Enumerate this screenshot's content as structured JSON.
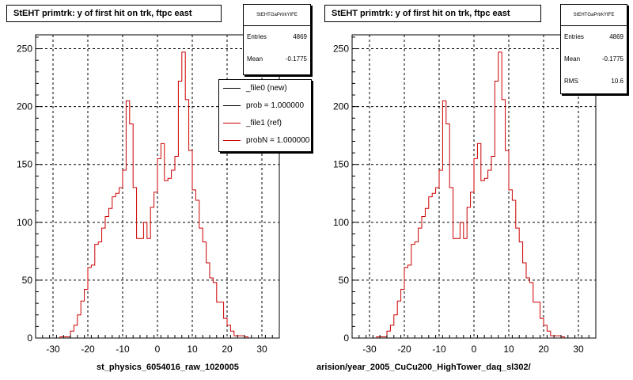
{
  "colors": {
    "hist": "#cc0000",
    "new": "#000000",
    "axis": "#000000",
    "grid": "#000000"
  },
  "panels": [
    {
      "title": "StEHT primtrk: y of first hit on trk, ftpc east",
      "stats": {
        "name": "StEHTGaPrtrkYtFE",
        "rows": [
          {
            "key": "Entries",
            "value": "4869"
          },
          {
            "key": "Mean",
            "value": "-0.1775"
          }
        ]
      },
      "legend": [
        {
          "label": "_file0 (new)",
          "color": "#000000"
        },
        {
          "label": "prob = 1.000000",
          "color": "#000000"
        },
        {
          "label": "_file1 (ref)",
          "color": "#cc0000"
        },
        {
          "label": "probN = 1.000000",
          "color": "#cc0000"
        }
      ],
      "xlabel": "st_physics_6054016_raw_1020005"
    },
    {
      "title": "StEHT primtrk: y of first hit on trk, ftpc east",
      "stats": {
        "name": "StEHTGaPrtrkYtFE",
        "rows": [
          {
            "key": "Entries",
            "value": "4869"
          },
          {
            "key": "Mean",
            "value": "-0.1775"
          },
          {
            "key": "RMS",
            "value": "10.6"
          }
        ]
      },
      "legend": [],
      "xlabel": "arision/year_2005_CuCu200_HighTower_daq_sl302/"
    }
  ],
  "chart_data": [
    {
      "type": "bar",
      "title": "StEHT primtrk: y of first hit on trk, ftpc east",
      "xlabel": "st_physics_6054016_raw_1020005",
      "ylabel": "",
      "xlim": [
        -35,
        35
      ],
      "ylim": [
        0,
        262
      ],
      "xticks": [
        -30,
        -20,
        -10,
        0,
        10,
        20,
        30
      ],
      "yticks": [
        0,
        50,
        100,
        150,
        200,
        250
      ],
      "grid": true,
      "bin_edges": [
        -28,
        -27,
        -26,
        -25,
        -24,
        -23,
        -22,
        -21,
        -20,
        -19,
        -18,
        -17,
        -16,
        -15,
        -14,
        -13,
        -12,
        -11,
        -10,
        -9,
        -8,
        -7,
        -6,
        -5,
        -4,
        -3,
        -2,
        -1,
        0,
        1,
        2,
        3,
        4,
        5,
        6,
        7,
        8,
        9,
        10,
        11,
        12,
        13,
        14,
        15,
        16,
        17,
        18,
        19,
        20,
        21,
        22,
        23,
        24,
        25,
        26
      ],
      "series": [
        {
          "name": "_file0 (new)",
          "values": [
            1,
            1,
            1,
            6,
            11,
            20,
            32,
            42,
            61,
            63,
            81,
            83,
            95,
            105,
            112,
            122,
            125,
            130,
            145,
            205,
            185,
            130,
            86,
            86,
            100,
            86,
            113,
            126,
            155,
            168,
            136,
            138,
            145,
            157,
            222,
            247,
            206,
            162,
            128,
            119,
            95,
            83,
            65,
            52,
            48,
            31,
            31,
            17,
            11,
            6,
            2,
            2,
            2,
            1
          ]
        },
        {
          "name": "_file1 (ref)",
          "values": [
            1,
            1,
            1,
            6,
            11,
            20,
            32,
            42,
            61,
            63,
            81,
            83,
            95,
            105,
            112,
            122,
            125,
            130,
            145,
            205,
            185,
            130,
            86,
            86,
            100,
            86,
            113,
            126,
            155,
            168,
            136,
            138,
            145,
            157,
            222,
            247,
            206,
            162,
            128,
            119,
            95,
            83,
            65,
            52,
            48,
            31,
            31,
            17,
            11,
            6,
            2,
            2,
            2,
            1
          ]
        }
      ],
      "legend": "top-right"
    },
    {
      "type": "bar",
      "title": "StEHT primtrk: y of first hit on trk, ftpc east",
      "xlabel": "arision/year_2005_CuCu200_HighTower_daq_sl302/",
      "ylabel": "",
      "xlim": [
        -35,
        35
      ],
      "ylim": [
        0,
        262
      ],
      "xticks": [
        -30,
        -20,
        -10,
        0,
        10,
        20,
        30
      ],
      "yticks": [
        0,
        50,
        100,
        150,
        200,
        250
      ],
      "grid": true,
      "bin_edges": [
        -28,
        -27,
        -26,
        -25,
        -24,
        -23,
        -22,
        -21,
        -20,
        -19,
        -18,
        -17,
        -16,
        -15,
        -14,
        -13,
        -12,
        -11,
        -10,
        -9,
        -8,
        -7,
        -6,
        -5,
        -4,
        -3,
        -2,
        -1,
        0,
        1,
        2,
        3,
        4,
        5,
        6,
        7,
        8,
        9,
        10,
        11,
        12,
        13,
        14,
        15,
        16,
        17,
        18,
        19,
        20,
        21,
        22,
        23,
        24,
        25,
        26
      ],
      "series": [
        {
          "values": [
            1,
            1,
            1,
            6,
            11,
            20,
            32,
            42,
            61,
            63,
            81,
            83,
            95,
            105,
            112,
            122,
            125,
            130,
            145,
            205,
            185,
            130,
            86,
            86,
            100,
            86,
            113,
            126,
            155,
            168,
            136,
            138,
            145,
            157,
            222,
            247,
            206,
            162,
            128,
            119,
            95,
            83,
            65,
            52,
            48,
            31,
            31,
            17,
            11,
            6,
            2,
            2,
            2,
            1
          ]
        }
      ]
    }
  ]
}
